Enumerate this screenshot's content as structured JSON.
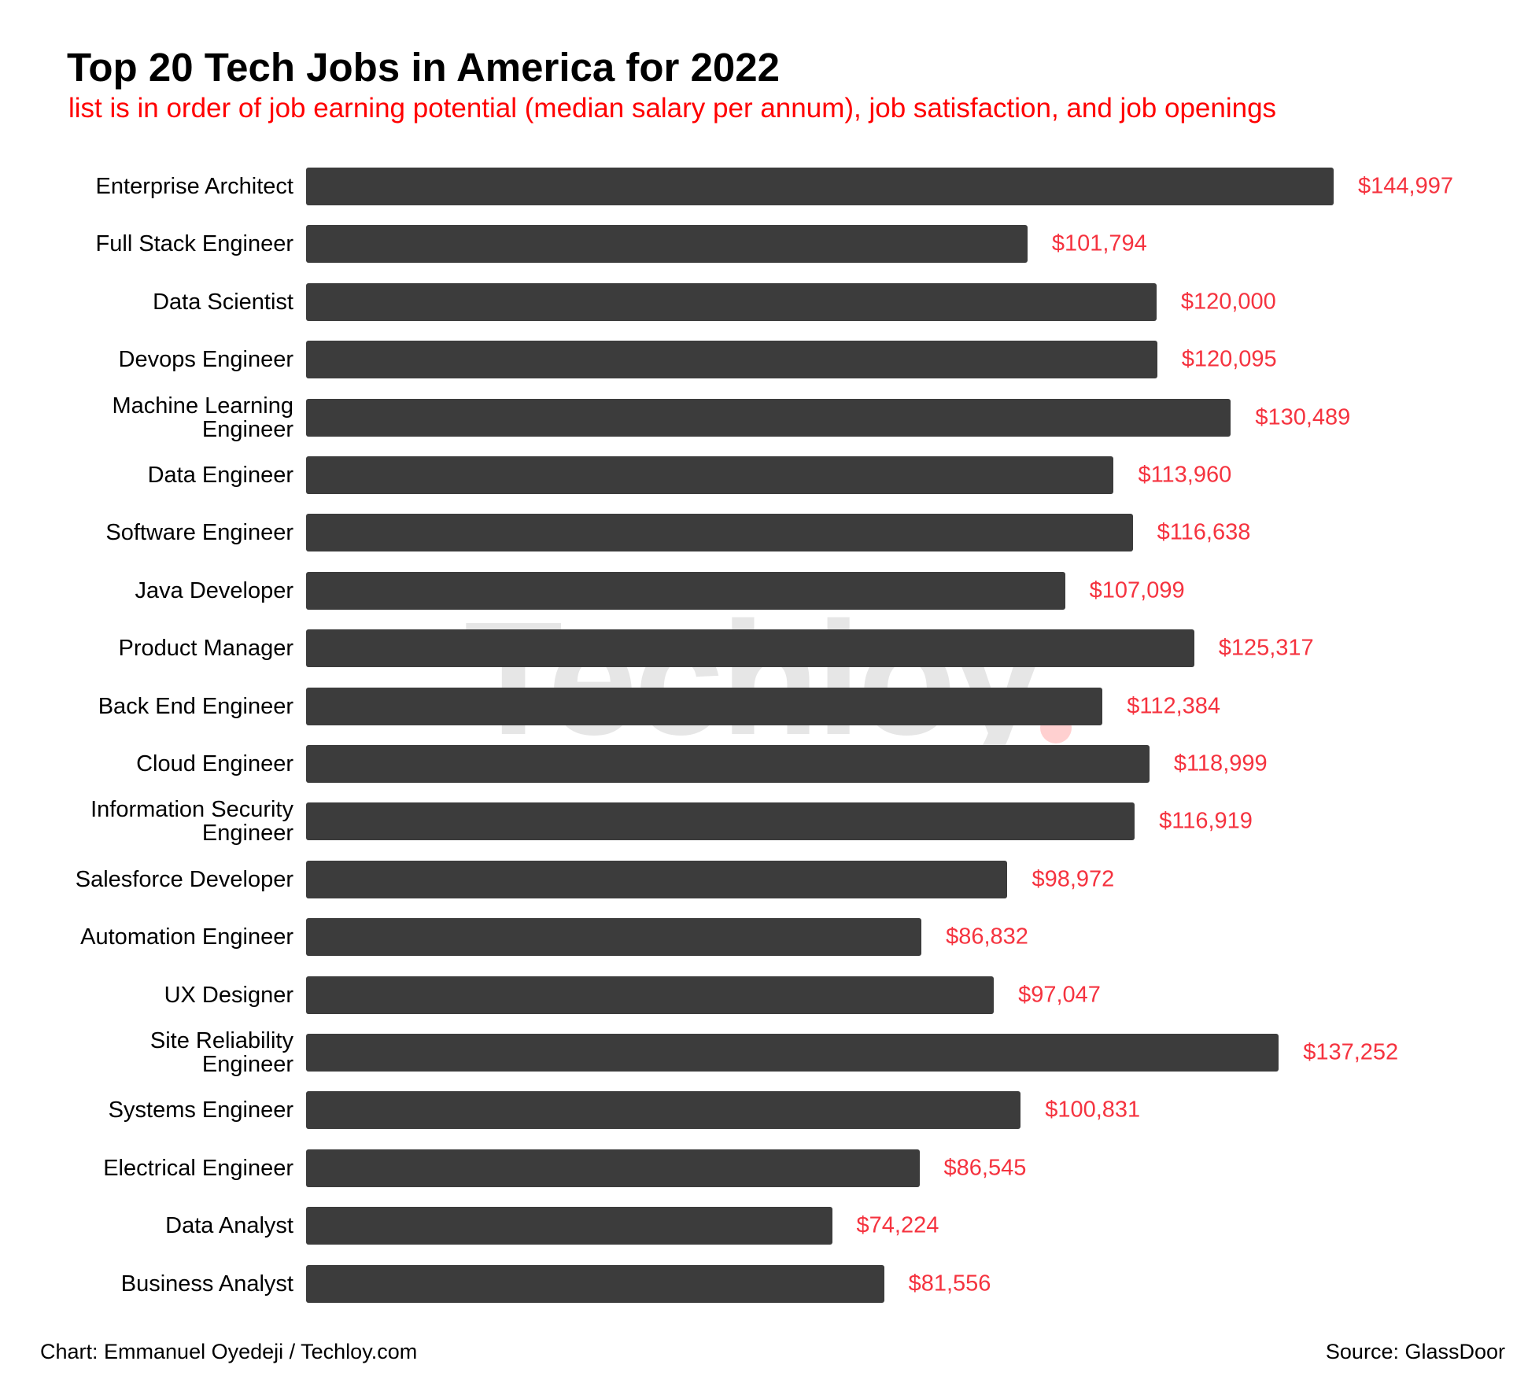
{
  "watermark": "Techloy",
  "chart_data": {
    "type": "bar",
    "orientation": "horizontal",
    "title": "Top 20 Tech Jobs in America for 2022",
    "subtitle": "list is in order of job earning potential (median salary per annum), job satisfaction, and job openings",
    "categories": [
      "Enterprise Architect",
      "Full Stack Engineer",
      "Data Scientist",
      "Devops Engineer",
      "Machine Learning\nEngineer",
      "Data Engineer",
      "Software Engineer",
      "Java Developer",
      "Product Manager",
      "Back End Engineer",
      "Cloud Engineer",
      "Information Security\nEngineer",
      "Salesforce Developer",
      "Automation Engineer",
      "UX Designer",
      "Site Reliability\nEngineer",
      "Systems Engineer",
      "Electrical Engineer",
      "Data Analyst",
      "Business Analyst"
    ],
    "values": [
      144997,
      101794,
      120000,
      120095,
      130489,
      113960,
      116638,
      107099,
      125317,
      112384,
      118999,
      116919,
      98972,
      86832,
      97047,
      137252,
      100831,
      86545,
      74224,
      81556
    ],
    "value_labels": [
      "$144,997",
      "$101,794",
      "$120,000",
      "$120,095",
      "$130,489",
      "$113,960",
      "$116,638",
      "$107,099",
      "$125,317",
      "$112,384",
      "$118,999",
      "$116,919",
      "$98,972",
      "$86,832",
      "$97,047",
      "$137,252",
      "$100,831",
      "$86,545",
      "$74,224",
      "$81,556"
    ],
    "xlim": [
      0,
      144997
    ],
    "grid": false,
    "legend": "none",
    "bar_color": "#3c3c3c",
    "label_color": "#f5333f",
    "subtitle_color": "#ff0000"
  },
  "footer": {
    "credit": "Chart: Emmanuel Oyedeji / Techloy.com",
    "source": "Source: GlassDoor"
  }
}
